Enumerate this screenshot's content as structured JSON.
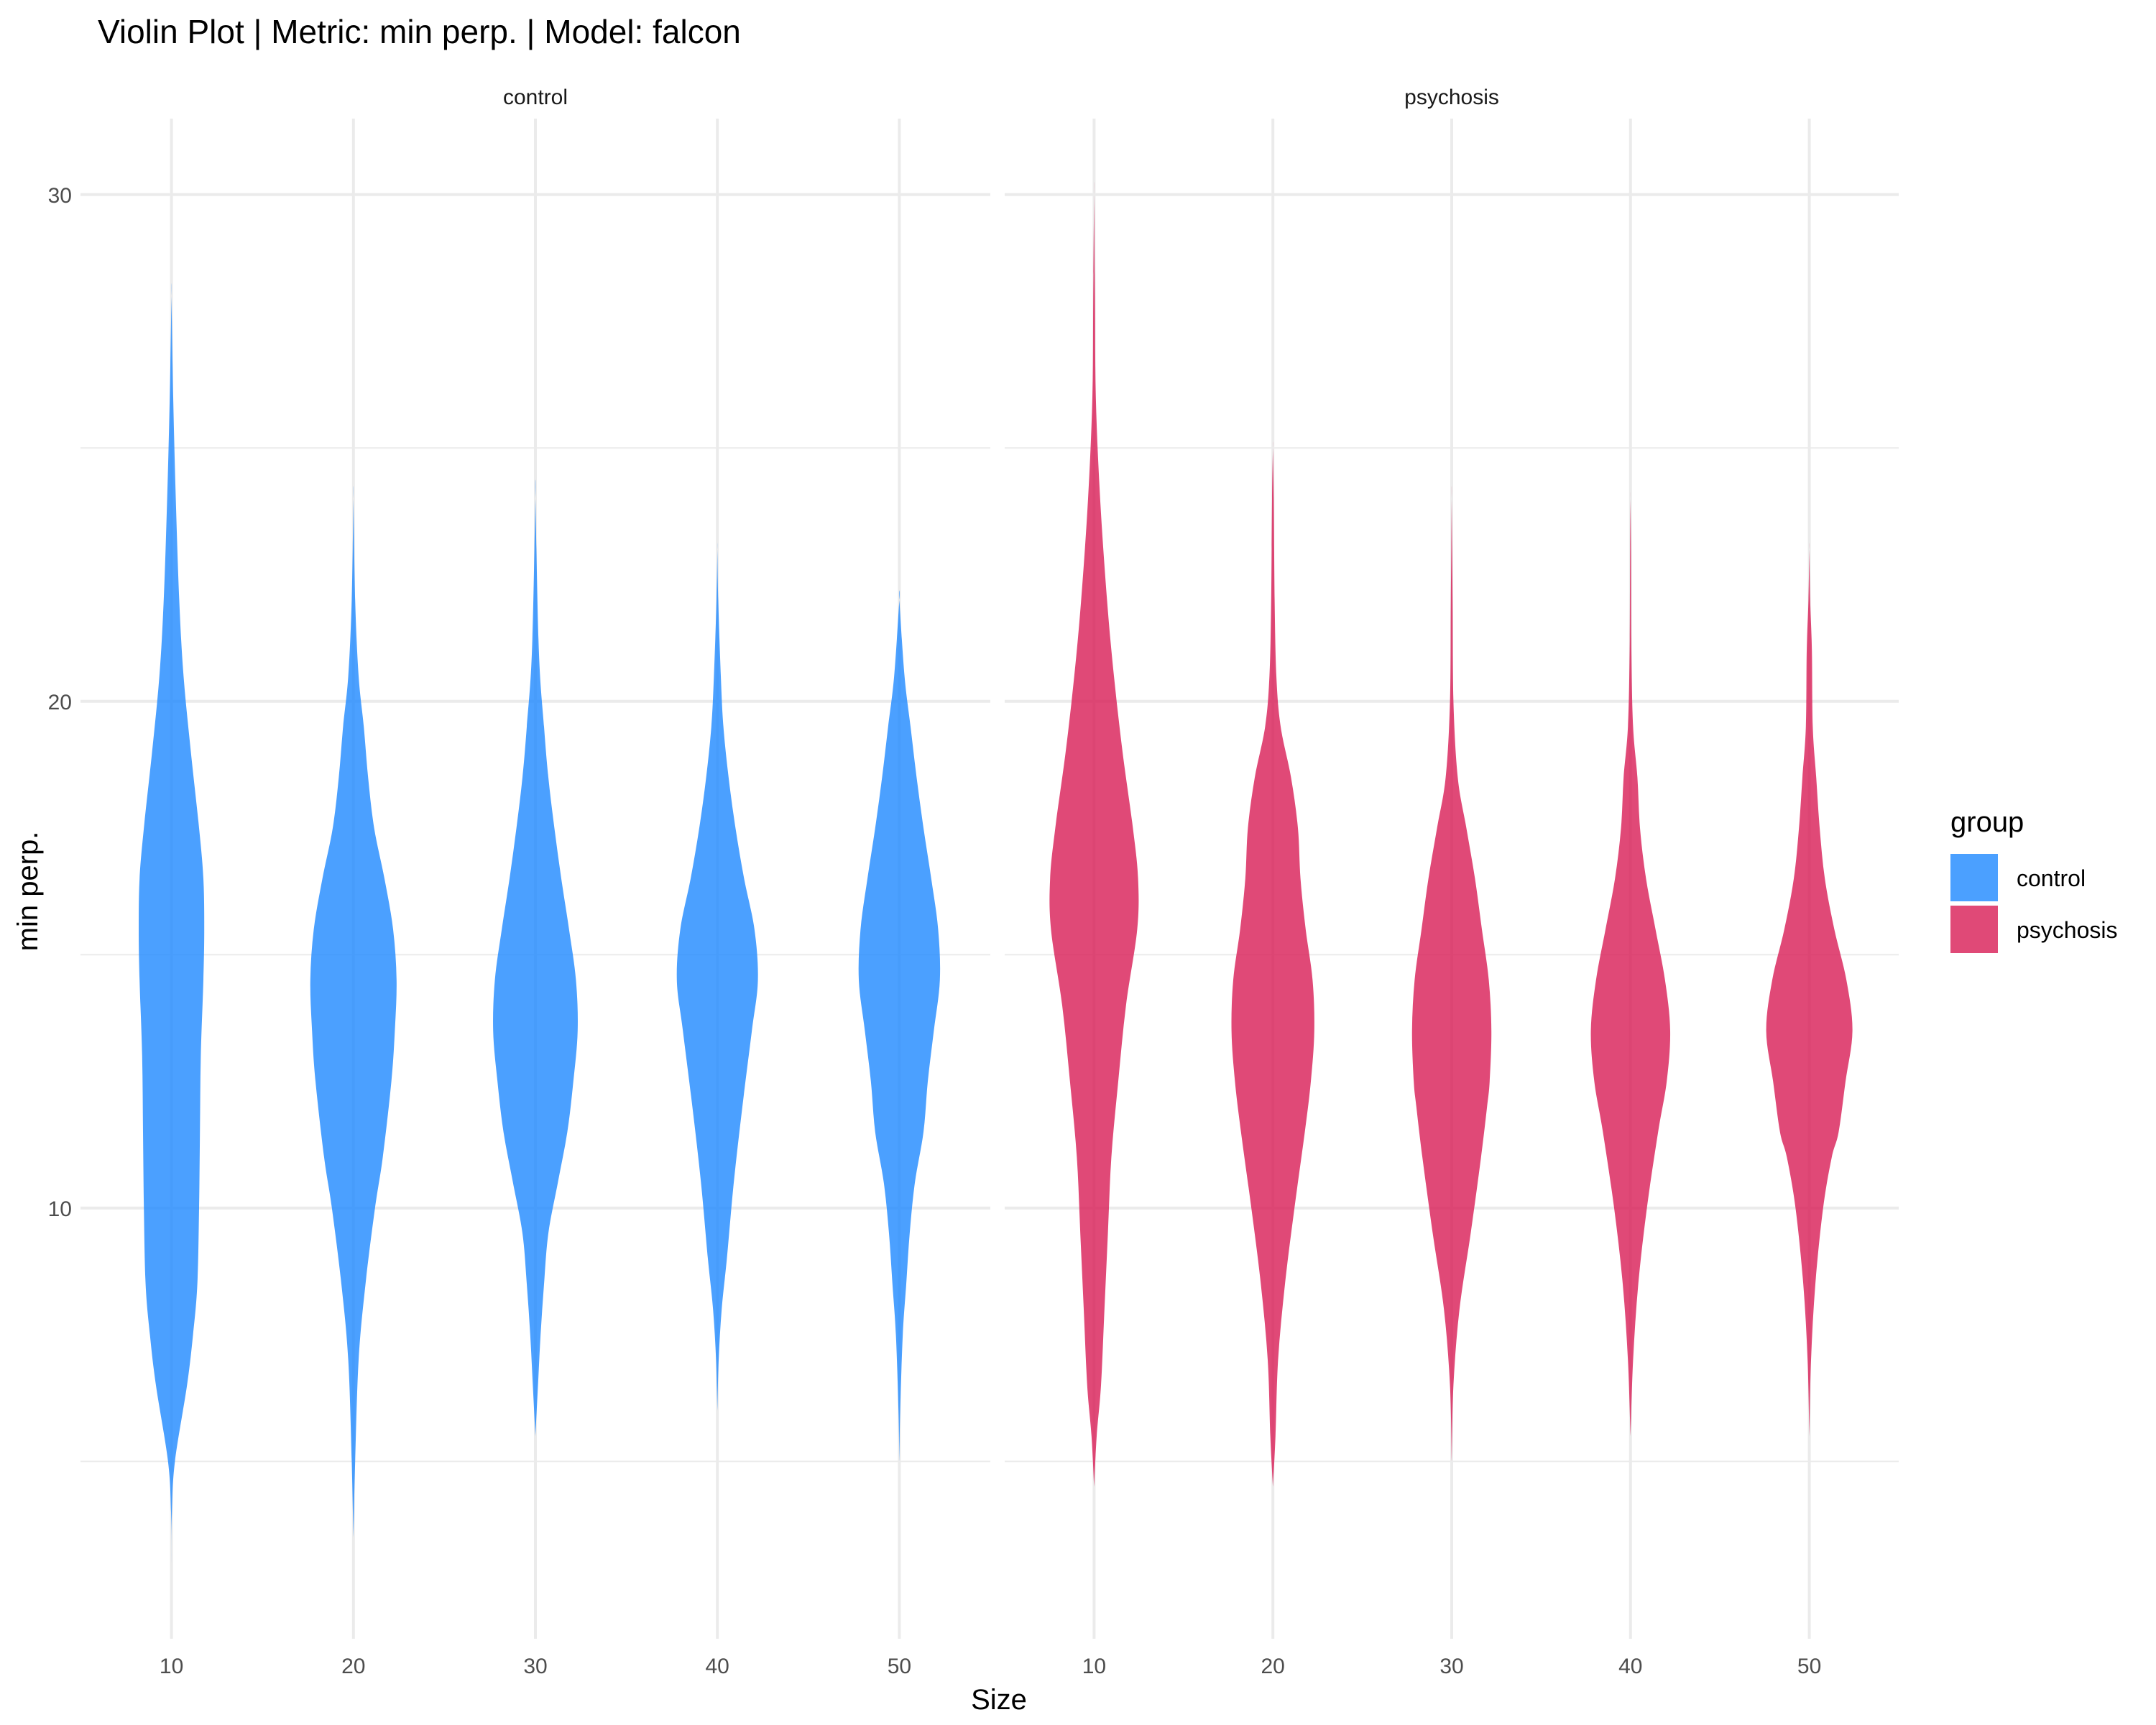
{
  "chart_data": {
    "type": "violin",
    "title": "Violin Plot | Metric: min perp. | Model: falcon",
    "xlabel": "Size",
    "ylabel": "min perp.",
    "ylim": [
      1.5,
      31.5
    ],
    "yticks": [
      10,
      20,
      30
    ],
    "categories": [
      "10",
      "20",
      "30",
      "40",
      "50"
    ],
    "grid": true,
    "legend": {
      "title": "group",
      "position": "right",
      "entries": [
        {
          "label": "control",
          "color": "#1E88FF"
        },
        {
          "label": "psychosis",
          "color": "#D81B55"
        }
      ]
    },
    "panels": [
      {
        "name": "control",
        "color": "#1E88FF",
        "violins": [
          {
            "x": "10",
            "profile": [
              [
                3.0,
                0.0
              ],
              [
                4.0,
                0.01
              ],
              [
                5.0,
                0.08
              ],
              [
                6.5,
                0.36
              ],
              [
                7.5,
                0.5
              ],
              [
                8.5,
                0.6
              ],
              [
                10.0,
                0.64
              ],
              [
                11.5,
                0.66
              ],
              [
                13.0,
                0.68
              ],
              [
                14.5,
                0.74
              ],
              [
                15.5,
                0.76
              ],
              [
                16.5,
                0.74
              ],
              [
                17.5,
                0.64
              ],
              [
                19.0,
                0.45
              ],
              [
                20.5,
                0.28
              ],
              [
                22.0,
                0.18
              ],
              [
                24.0,
                0.1
              ],
              [
                26.0,
                0.04
              ],
              [
                28.0,
                0.0
              ]
            ]
          },
          {
            "x": "20",
            "profile": [
              [
                3.5,
                0.0
              ],
              [
                5.0,
                0.04
              ],
              [
                7.0,
                0.12
              ],
              [
                8.5,
                0.28
              ],
              [
                10.0,
                0.5
              ],
              [
                11.0,
                0.68
              ],
              [
                12.5,
                0.88
              ],
              [
                13.5,
                0.96
              ],
              [
                14.5,
                1.0
              ],
              [
                15.5,
                0.92
              ],
              [
                16.5,
                0.72
              ],
              [
                17.5,
                0.48
              ],
              [
                18.5,
                0.34
              ],
              [
                19.5,
                0.24
              ],
              [
                20.5,
                0.12
              ],
              [
                22.0,
                0.04
              ],
              [
                24.0,
                0.0
              ]
            ]
          },
          {
            "x": "30",
            "profile": [
              [
                5.5,
                0.0
              ],
              [
                6.5,
                0.06
              ],
              [
                7.5,
                0.12
              ],
              [
                8.5,
                0.2
              ],
              [
                9.5,
                0.3
              ],
              [
                10.5,
                0.52
              ],
              [
                11.5,
                0.74
              ],
              [
                12.5,
                0.88
              ],
              [
                13.5,
                0.98
              ],
              [
                14.5,
                0.94
              ],
              [
                15.5,
                0.78
              ],
              [
                16.5,
                0.6
              ],
              [
                17.5,
                0.44
              ],
              [
                18.5,
                0.3
              ],
              [
                19.5,
                0.2
              ],
              [
                21.0,
                0.08
              ],
              [
                24.0,
                0.0
              ]
            ]
          },
          {
            "x": "40",
            "profile": [
              [
                6.0,
                0.0
              ],
              [
                7.0,
                0.03
              ],
              [
                8.0,
                0.1
              ],
              [
                9.0,
                0.22
              ],
              [
                10.5,
                0.38
              ],
              [
                12.0,
                0.58
              ],
              [
                13.5,
                0.8
              ],
              [
                14.5,
                0.94
              ],
              [
                15.5,
                0.86
              ],
              [
                16.5,
                0.62
              ],
              [
                17.5,
                0.42
              ],
              [
                18.5,
                0.26
              ],
              [
                19.5,
                0.14
              ],
              [
                20.5,
                0.08
              ],
              [
                22.0,
                0.02
              ],
              [
                23.0,
                0.0
              ]
            ]
          },
          {
            "x": "50",
            "profile": [
              [
                5.0,
                0.0
              ],
              [
                6.0,
                0.02
              ],
              [
                7.5,
                0.08
              ],
              [
                8.5,
                0.16
              ],
              [
                9.5,
                0.24
              ],
              [
                10.5,
                0.36
              ],
              [
                11.5,
                0.56
              ],
              [
                12.5,
                0.66
              ],
              [
                13.5,
                0.8
              ],
              [
                14.5,
                0.94
              ],
              [
                15.5,
                0.9
              ],
              [
                16.5,
                0.74
              ],
              [
                17.5,
                0.56
              ],
              [
                18.5,
                0.4
              ],
              [
                19.5,
                0.26
              ],
              [
                20.5,
                0.12
              ],
              [
                22.0,
                0.0
              ]
            ]
          }
        ]
      },
      {
        "name": "psychosis",
        "color": "#D81B55",
        "violins": [
          {
            "x": "10",
            "profile": [
              [
                4.5,
                0.0
              ],
              [
                5.5,
                0.06
              ],
              [
                6.5,
                0.16
              ],
              [
                8.0,
                0.24
              ],
              [
                9.5,
                0.32
              ],
              [
                11.0,
                0.4
              ],
              [
                12.5,
                0.56
              ],
              [
                14.0,
                0.74
              ],
              [
                15.5,
                1.0
              ],
              [
                16.5,
                1.02
              ],
              [
                17.5,
                0.9
              ],
              [
                19.0,
                0.66
              ],
              [
                20.5,
                0.46
              ],
              [
                22.0,
                0.3
              ],
              [
                24.0,
                0.14
              ],
              [
                26.0,
                0.04
              ],
              [
                28.0,
                0.02
              ],
              [
                30.0,
                0.0
              ]
            ]
          },
          {
            "x": "20",
            "profile": [
              [
                4.5,
                0.0
              ],
              [
                5.5,
                0.06
              ],
              [
                7.0,
                0.12
              ],
              [
                8.5,
                0.28
              ],
              [
                10.0,
                0.5
              ],
              [
                11.5,
                0.74
              ],
              [
                12.5,
                0.88
              ],
              [
                13.5,
                0.96
              ],
              [
                14.5,
                0.92
              ],
              [
                15.5,
                0.76
              ],
              [
                16.5,
                0.64
              ],
              [
                17.5,
                0.58
              ],
              [
                18.5,
                0.42
              ],
              [
                19.5,
                0.18
              ],
              [
                20.5,
                0.08
              ],
              [
                22.0,
                0.04
              ],
              [
                24.0,
                0.02
              ],
              [
                25.0,
                0.0
              ]
            ]
          },
          {
            "x": "30",
            "profile": [
              [
                5.0,
                0.0
              ],
              [
                6.5,
                0.04
              ],
              [
                8.0,
                0.18
              ],
              [
                9.5,
                0.44
              ],
              [
                11.0,
                0.68
              ],
              [
                12.0,
                0.82
              ],
              [
                12.5,
                0.88
              ],
              [
                13.5,
                0.92
              ],
              [
                14.5,
                0.86
              ],
              [
                15.5,
                0.7
              ],
              [
                16.5,
                0.54
              ],
              [
                17.5,
                0.34
              ],
              [
                18.5,
                0.14
              ],
              [
                20.0,
                0.04
              ],
              [
                22.0,
                0.02
              ],
              [
                24.0,
                0.0
              ]
            ]
          },
          {
            "x": "40",
            "profile": [
              [
                5.5,
                0.0
              ],
              [
                7.0,
                0.06
              ],
              [
                8.5,
                0.18
              ],
              [
                10.0,
                0.38
              ],
              [
                11.5,
                0.64
              ],
              [
                12.5,
                0.84
              ],
              [
                13.5,
                0.92
              ],
              [
                14.5,
                0.8
              ],
              [
                15.5,
                0.58
              ],
              [
                16.5,
                0.36
              ],
              [
                17.5,
                0.22
              ],
              [
                18.5,
                0.16
              ],
              [
                19.5,
                0.06
              ],
              [
                21.0,
                0.02
              ],
              [
                23.0,
                0.01
              ],
              [
                24.0,
                0.0
              ]
            ]
          },
          {
            "x": "50",
            "profile": [
              [
                5.5,
                0.0
              ],
              [
                7.0,
                0.04
              ],
              [
                8.5,
                0.14
              ],
              [
                10.0,
                0.32
              ],
              [
                11.0,
                0.52
              ],
              [
                11.5,
                0.68
              ],
              [
                12.5,
                0.84
              ],
              [
                13.5,
                1.0
              ],
              [
                14.5,
                0.86
              ],
              [
                15.5,
                0.58
              ],
              [
                16.5,
                0.36
              ],
              [
                17.5,
                0.24
              ],
              [
                18.5,
                0.16
              ],
              [
                19.5,
                0.08
              ],
              [
                21.0,
                0.06
              ],
              [
                22.0,
                0.02
              ],
              [
                23.0,
                0.0
              ]
            ]
          }
        ]
      }
    ]
  }
}
